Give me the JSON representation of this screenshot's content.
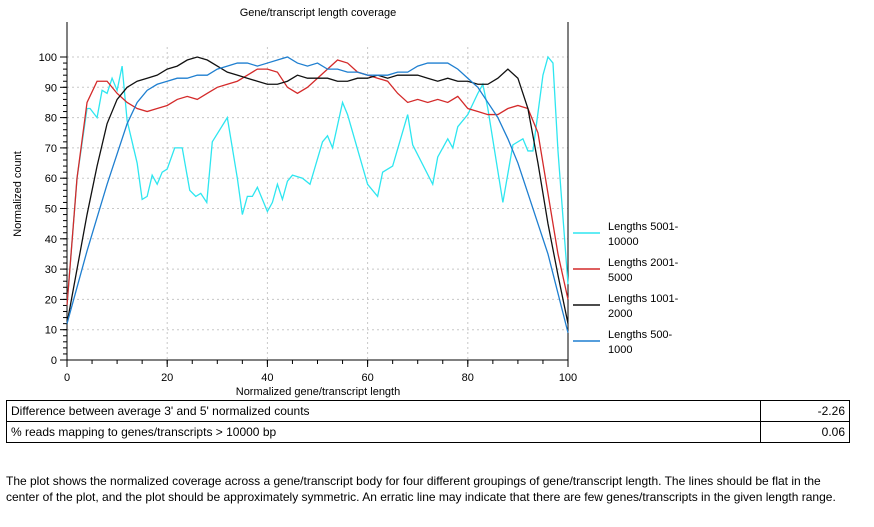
{
  "chart_data": {
    "type": "line",
    "title": "Gene/transcript length coverage",
    "xlabel": "Normalized gene/transcript length",
    "ylabel": "Normalized count",
    "xlim": [
      0,
      100
    ],
    "ylim": [
      0,
      100
    ],
    "xticks": [
      0,
      20,
      40,
      60,
      80,
      100
    ],
    "yticks": [
      0,
      10,
      20,
      30,
      40,
      50,
      60,
      70,
      80,
      90,
      100
    ],
    "grid": true,
    "legend": "right",
    "series": [
      {
        "name": "Lengths 5001-10000",
        "color": "#2ee6f0",
        "points": [
          [
            0,
            18
          ],
          [
            2,
            60
          ],
          [
            4,
            83
          ],
          [
            4.6,
            83
          ],
          [
            6,
            80
          ],
          [
            7,
            89
          ],
          [
            8,
            88
          ],
          [
            9,
            93
          ],
          [
            10,
            89
          ],
          [
            11,
            97
          ],
          [
            12,
            79
          ],
          [
            14,
            65
          ],
          [
            15,
            53
          ],
          [
            16,
            54
          ],
          [
            17,
            61
          ],
          [
            18,
            58
          ],
          [
            19,
            62
          ],
          [
            20,
            63
          ],
          [
            21.5,
            70
          ],
          [
            23,
            70
          ],
          [
            24.5,
            56
          ],
          [
            25.7,
            54
          ],
          [
            26.7,
            55
          ],
          [
            27.9,
            52
          ],
          [
            29,
            72
          ],
          [
            32,
            80
          ],
          [
            34,
            60
          ],
          [
            35,
            48
          ],
          [
            36,
            54
          ],
          [
            37,
            54
          ],
          [
            38,
            57
          ],
          [
            40,
            49
          ],
          [
            41,
            52
          ],
          [
            42,
            58
          ],
          [
            43,
            53
          ],
          [
            44,
            59
          ],
          [
            45,
            61
          ],
          [
            47,
            60
          ],
          [
            48.5,
            58
          ],
          [
            51,
            72
          ],
          [
            52,
            74
          ],
          [
            53,
            70
          ],
          [
            55,
            85
          ],
          [
            56,
            81
          ],
          [
            60,
            58
          ],
          [
            62,
            54
          ],
          [
            63,
            62
          ],
          [
            65,
            64
          ],
          [
            68,
            81
          ],
          [
            69,
            71
          ],
          [
            73,
            58
          ],
          [
            74,
            67
          ],
          [
            76,
            73
          ],
          [
            77,
            70
          ],
          [
            78,
            77
          ],
          [
            80,
            81
          ],
          [
            82,
            88
          ],
          [
            83,
            91
          ],
          [
            84,
            83
          ],
          [
            87,
            52
          ],
          [
            89,
            71
          ],
          [
            91,
            73
          ],
          [
            92,
            69
          ],
          [
            93,
            69
          ],
          [
            95,
            94
          ],
          [
            96,
            100
          ],
          [
            97,
            98
          ],
          [
            98,
            69
          ],
          [
            100,
            25
          ]
        ]
      },
      {
        "name": "Lengths 2001-5000",
        "color": "#d42a2a",
        "x": [
          0,
          2,
          4,
          6,
          8,
          10,
          12,
          14,
          16,
          18,
          20,
          22,
          24,
          26,
          28,
          30,
          32,
          34,
          36,
          38,
          40,
          42,
          44,
          46,
          48,
          50,
          52,
          54,
          56,
          58,
          60,
          62,
          64,
          66,
          68,
          70,
          72,
          74,
          76,
          78,
          80,
          82,
          84,
          86,
          88,
          90,
          92,
          94,
          96,
          98,
          100
        ],
        "y": [
          18,
          60,
          85,
          92,
          92,
          88,
          85,
          83,
          82,
          83,
          84,
          86,
          87,
          86,
          88,
          90,
          91,
          92,
          94,
          96,
          96,
          95,
          90,
          88,
          90,
          93,
          96,
          99,
          98,
          95,
          94,
          93,
          92,
          88,
          85,
          86,
          85,
          86,
          85,
          87,
          83,
          82,
          81,
          81,
          83,
          84,
          83,
          75,
          55,
          35,
          20
        ]
      },
      {
        "name": "Lengths 1001-2000",
        "color": "#111111",
        "x": [
          0,
          2,
          4,
          6,
          8,
          10,
          12,
          14,
          16,
          18,
          20,
          22,
          24,
          26,
          28,
          30,
          32,
          34,
          36,
          38,
          40,
          42,
          44,
          46,
          48,
          50,
          52,
          54,
          56,
          58,
          60,
          62,
          64,
          66,
          68,
          70,
          72,
          74,
          76,
          78,
          80,
          82,
          84,
          86,
          88,
          90,
          92,
          94,
          96,
          98,
          100
        ],
        "y": [
          12,
          30,
          48,
          64,
          78,
          86,
          90,
          92,
          93,
          94,
          96,
          97,
          99,
          100,
          99,
          97,
          95,
          94,
          93,
          92,
          91,
          91,
          92,
          94,
          93,
          93,
          93,
          92,
          92,
          93,
          93,
          94,
          93,
          94,
          94,
          94,
          93,
          92,
          93,
          92,
          92,
          91,
          91,
          93,
          96,
          93,
          83,
          65,
          45,
          28,
          12
        ]
      },
      {
        "name": "Lengths 500-1000",
        "color": "#1f7fd0",
        "x": [
          0,
          2,
          4,
          6,
          8,
          10,
          12,
          14,
          16,
          18,
          20,
          22,
          24,
          26,
          28,
          30,
          32,
          34,
          36,
          38,
          40,
          42,
          44,
          46,
          48,
          50,
          52,
          54,
          56,
          58,
          60,
          62,
          64,
          66,
          68,
          70,
          72,
          74,
          76,
          78,
          80,
          82,
          84,
          86,
          88,
          90,
          92,
          94,
          96,
          98,
          100
        ],
        "y": [
          12,
          24,
          36,
          47,
          58,
          68,
          78,
          85,
          89,
          91,
          92,
          93,
          93,
          94,
          94,
          96,
          97,
          98,
          98,
          97,
          98,
          99,
          100,
          98,
          97,
          98,
          96,
          96,
          95,
          95,
          94,
          94,
          94,
          95,
          95,
          97,
          98,
          98,
          98,
          96,
          93,
          90,
          85,
          80,
          73,
          65,
          55,
          45,
          35,
          22,
          9
        ]
      }
    ]
  },
  "legend_labels": [
    [
      "Lengths 5001-",
      "10000"
    ],
    [
      "Lengths 2001-",
      "5000"
    ],
    [
      "Lengths 1001-",
      "2000"
    ],
    [
      "Lengths 500-",
      "1000"
    ]
  ],
  "table": [
    {
      "label": "Difference between average 3' and 5' normalized counts",
      "value": "-2.26"
    },
    {
      "label": "% reads mapping to genes/transcripts > 10000 bp",
      "value": "0.06"
    }
  ],
  "note": "The plot shows the normalized coverage across a gene/transcript body for four different groupings of gene/transcript length. The lines should be flat in the center of the plot, and the plot should be approximately symmetric. An erratic line may indicate that there are few genes/transcripts in the given length range."
}
